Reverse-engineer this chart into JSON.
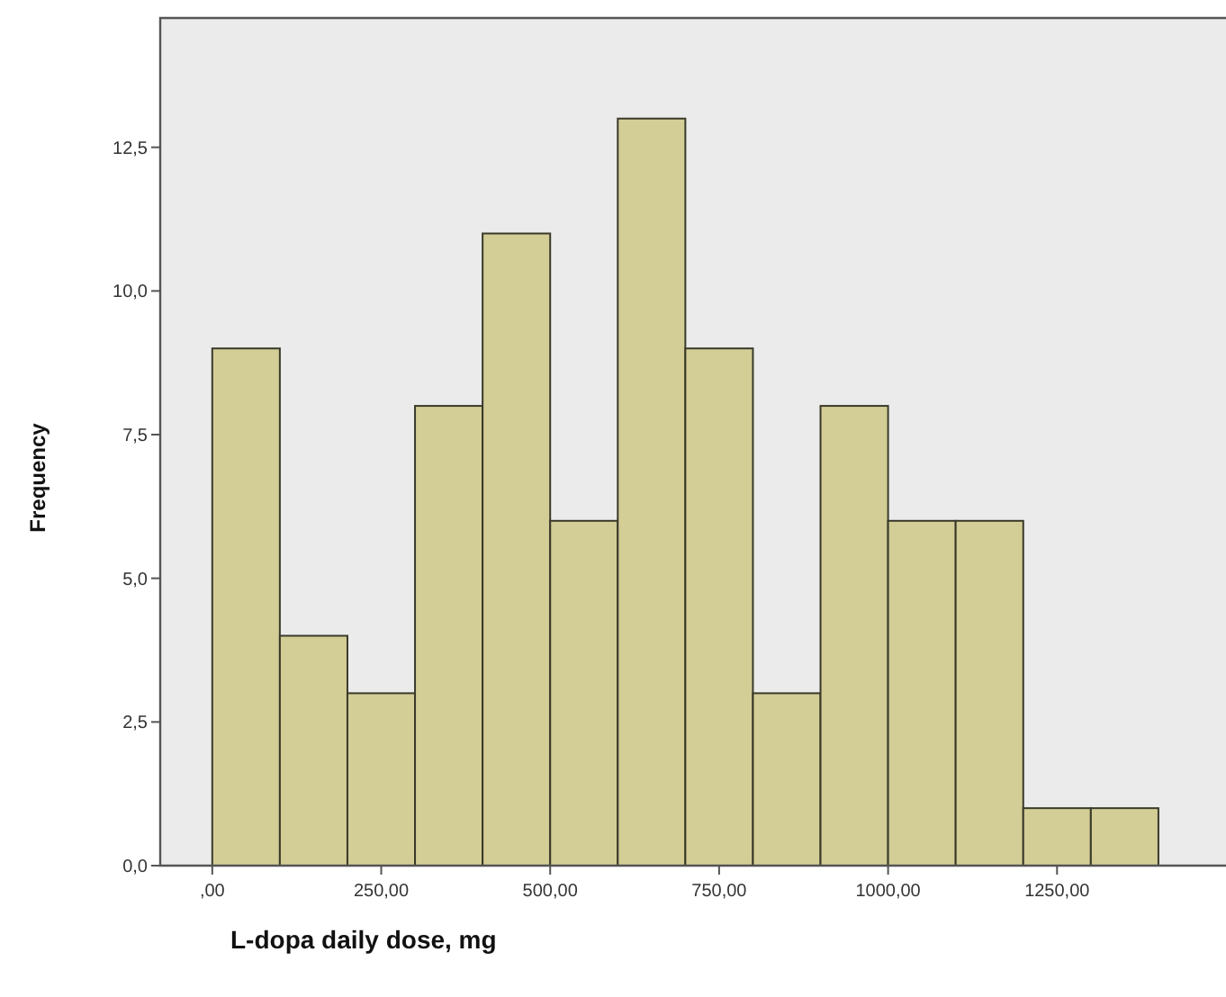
{
  "chart_data": {
    "type": "histogram",
    "xlabel": "L-dopa daily dose, mg",
    "ylabel": "Frequency",
    "bins": [
      0,
      100,
      200,
      300,
      400,
      500,
      600,
      700,
      800,
      900,
      1000,
      1100,
      1200,
      1300,
      1400
    ],
    "values": [
      9,
      4,
      3,
      8,
      11,
      6,
      13,
      9,
      3,
      8,
      6,
      6,
      1,
      1
    ],
    "color": "#d3cd96",
    "xlim": [
      -77,
      1500
    ],
    "ylim": [
      0,
      14.75
    ],
    "xticks": [
      {
        "value": 0,
        "label": ",00"
      },
      {
        "value": 250,
        "label": "250,00"
      },
      {
        "value": 500,
        "label": "500,00"
      },
      {
        "value": 750,
        "label": "750,00"
      },
      {
        "value": 1000,
        "label": "1000,00"
      },
      {
        "value": 1250,
        "label": "1250,00"
      }
    ],
    "yticks": [
      {
        "value": 0,
        "label": "0,0"
      },
      {
        "value": 2.5,
        "label": "2,5"
      },
      {
        "value": 5,
        "label": "5,0"
      },
      {
        "value": 7.5,
        "label": "7,5"
      },
      {
        "value": 10,
        "label": "10,0"
      },
      {
        "value": 12.5,
        "label": "12,5"
      }
    ],
    "grid": false
  }
}
